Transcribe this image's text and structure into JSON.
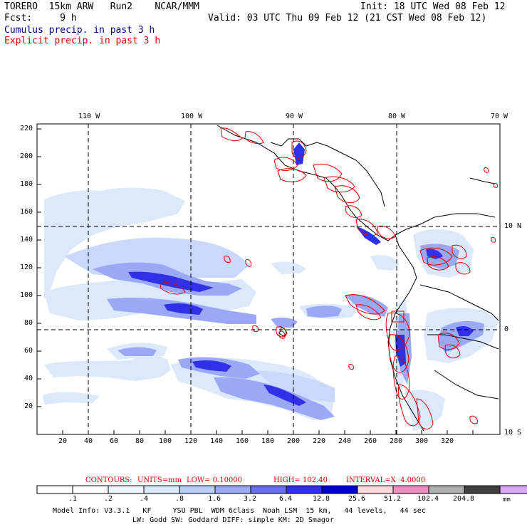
{
  "header": {
    "line1_left": "TORERO  15km ARW   Run2    NCAR/MMM",
    "line1_right": "Init: 18 UTC Wed 08 Feb 12",
    "line2_left": "Fcst:     9 h",
    "line2_right": "Valid: 03 UTC Thu 09 Feb 12 (21 CST Wed 08 Feb 12)",
    "cumulus_label": "Cumulus precip. in past 3 h",
    "explicit_label": "Explicit precip. in past 3 h",
    "cumulus_color": "#000080",
    "explicit_color": "#dd0000"
  },
  "axes": {
    "lon_labels": [
      "110 W",
      "100 W",
      "90 W",
      "80 W",
      "70 W"
    ],
    "lat_labels": [
      "10 N",
      "0",
      "10 S"
    ],
    "y_ticks": [
      "220",
      "200",
      "180",
      "160",
      "140",
      "120",
      "100",
      "80",
      "60",
      "40",
      "20"
    ],
    "x_ticks": [
      "20",
      "40",
      "60",
      "80",
      "100",
      "120",
      "140",
      "160",
      "180",
      "200",
      "220",
      "240",
      "260",
      "280",
      "300",
      "320"
    ]
  },
  "contour_info": {
    "contours": "CONTOURS:",
    "units": "UNITS=mm",
    "low": "LOW= 0.10000",
    "high": "HIGH= 102.40",
    "interval": "INTERVAL=X  4.0000"
  },
  "colorbar": {
    "labels": [
      ".1",
      ".2",
      ".4",
      ".8",
      "1.6",
      "3.2",
      "6.4",
      "12.8",
      "25.6",
      "51.2",
      "102.4",
      "204.8"
    ],
    "unit": "mm",
    "colors": [
      "#ffffff",
      "#ffffff",
      "#eef4ff",
      "#daeafe",
      "#b8cef8",
      "#9aa8f5",
      "#6a6ef0",
      "#3030e8",
      "#0000cc",
      "#ffd6dc",
      "#f08cc0",
      "#b0b0b0",
      "#404040",
      "#d8a8f8"
    ]
  },
  "footer": {
    "line1": "Model Info: V3.3.1   KF     YSU PBL  WDM 6class  Noah LSM  15 km,   44 levels,   44 sec",
    "line2": "LW: Godd SW: Goddard DIFF: simple KM: 2D Smagor"
  }
}
